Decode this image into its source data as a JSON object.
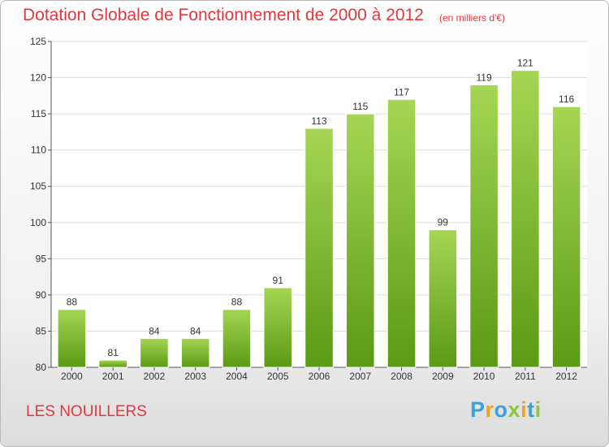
{
  "header": {
    "title": "Dotation Globale de Fonctionnement de 2000 à 2012",
    "subtitle": "(en milliers d'€)"
  },
  "footer": {
    "commune": "LES NOUILLERS",
    "logo_text": "Proxiti",
    "logo_letters": [
      {
        "char": "P",
        "color": "#3aa2d8"
      },
      {
        "char": "r",
        "color": "#f2a01e"
      },
      {
        "char": "o",
        "color": "#3aa2d8"
      },
      {
        "char": "x",
        "color": "#8cc63f"
      },
      {
        "char": "i",
        "color": "#f2a01e"
      },
      {
        "char": "t",
        "color": "#3aa2d8"
      },
      {
        "char": "i",
        "color": "#8cc63f"
      }
    ]
  },
  "colors": {
    "title": "#e0373d",
    "bar_light": "#a6d653",
    "bar_dark": "#5a9a14",
    "grid": "#dddddd",
    "axis": "#555555"
  },
  "chart_data": {
    "type": "bar",
    "categories": [
      "2000",
      "2001",
      "2002",
      "2003",
      "2004",
      "2005",
      "2006",
      "2007",
      "2008",
      "2009",
      "2010",
      "2011",
      "2012"
    ],
    "values": [
      88,
      81,
      84,
      84,
      88,
      91,
      113,
      115,
      117,
      99,
      119,
      121,
      116
    ],
    "data_labels": [
      "88",
      "81",
      "84",
      "84",
      "88",
      "91",
      "113",
      "115",
      "117",
      "99",
      "119",
      "121",
      "116"
    ],
    "ylim": [
      80,
      125
    ],
    "yticks": [
      80,
      85,
      90,
      95,
      100,
      105,
      110,
      115,
      120,
      125
    ],
    "grid": true,
    "legend": "none"
  }
}
